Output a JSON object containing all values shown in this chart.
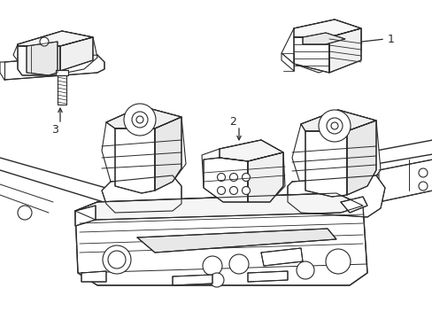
{
  "bg_color": "#ffffff",
  "lc": "#2a2a2a",
  "lw": 0.8,
  "fig_width": 4.89,
  "fig_height": 3.6,
  "dpi": 100,
  "label1": "1",
  "label2": "2",
  "label3": "3"
}
